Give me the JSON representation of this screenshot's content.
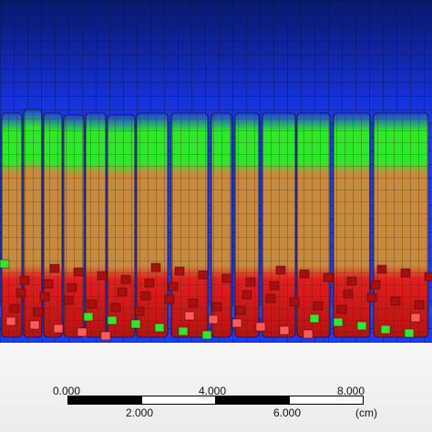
{
  "image": {
    "type": "finite-element-mesh-rendering",
    "colors": {
      "fluid_top": "#08186c",
      "fluid_bottom": "#1a3cff",
      "mesh_line": "#0b1240",
      "body": "#c78a3e",
      "green": "#2ee82a",
      "red": "#e41d1d",
      "blue_patch": "#1c4cf0"
    }
  },
  "scale_bar": {
    "labels_top": [
      "0.000",
      "4.000",
      "8.000"
    ],
    "labels_bottom": [
      "2.000",
      "6.000"
    ],
    "unit": "(cm)",
    "segment_colors": [
      "#000000",
      "#ffffff",
      "#000000",
      "#ffffff"
    ]
  }
}
